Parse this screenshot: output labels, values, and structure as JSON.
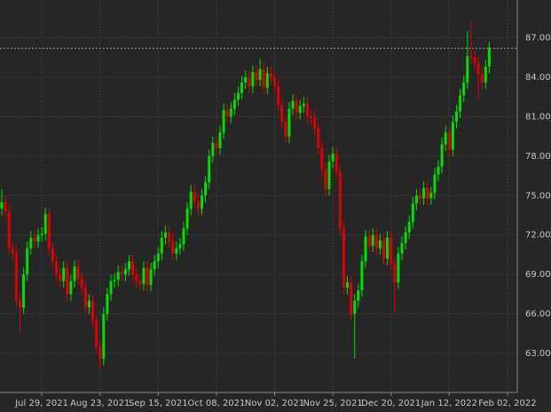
{
  "chart_data": {
    "type": "candlestick",
    "categories": [
      null,
      null,
      null,
      null,
      null,
      null,
      null,
      null,
      null,
      null,
      null,
      "Jul 29, 2021",
      null,
      null,
      null,
      null,
      null,
      null,
      null,
      null,
      null,
      null,
      null,
      null,
      null,
      null,
      null,
      "Aug 23, 2021",
      null,
      null,
      null,
      null,
      null,
      null,
      null,
      null,
      null,
      null,
      null,
      null,
      null,
      null,
      null,
      "Sep 15, 2021",
      null,
      null,
      null,
      null,
      null,
      null,
      null,
      null,
      null,
      null,
      null,
      null,
      null,
      null,
      null,
      "Oct 08, 2021",
      null,
      null,
      null,
      null,
      null,
      null,
      null,
      null,
      null,
      null,
      null,
      null,
      null,
      null,
      null,
      "Nov 02, 2021",
      null,
      null,
      null,
      null,
      null,
      null,
      null,
      null,
      null,
      null,
      null,
      null,
      null,
      null,
      null,
      "Nov 25, 2021",
      null,
      null,
      null,
      null,
      null,
      null,
      null,
      null,
      null,
      null,
      null,
      null,
      null,
      null,
      null,
      "Dec 20, 2021",
      null,
      null,
      null,
      null,
      null,
      null,
      null,
      null,
      null,
      null,
      null,
      null,
      null,
      null,
      null,
      "Jan 12, 2022",
      null,
      null,
      null,
      null,
      null,
      null,
      null,
      null,
      null,
      null,
      null,
      null,
      null,
      null,
      null,
      "Feb 02, 2022",
      null
    ],
    "open": [
      74.0,
      74.5,
      73.8,
      71.0,
      70.6,
      67.0,
      66.5,
      69.0,
      71.0,
      71.8,
      71.5,
      72.0,
      72.1,
      73.6,
      71.0,
      70.0,
      69.0,
      68.5,
      69.5,
      67.5,
      68.5,
      69.6,
      68.7,
      68.0,
      66.5,
      67.0,
      65.5,
      63.5,
      62.6,
      66.0,
      67.5,
      68.5,
      68.6,
      69.2,
      69.0,
      69.4,
      70.0,
      69.0,
      68.5,
      68.3,
      69.5,
      68.2,
      69.4,
      70.0,
      70.6,
      71.8,
      72.2,
      71.5,
      70.6,
      71.0,
      71.3,
      72.5,
      74.0,
      75.3,
      74.6,
      74.0,
      75.0,
      76.0,
      78.0,
      79.0,
      78.6,
      79.8,
      81.5,
      81.0,
      81.6,
      82.3,
      82.8,
      83.6,
      84.0,
      83.3,
      84.4,
      83.8,
      84.6,
      83.2,
      84.3,
      84.0,
      83.3,
      81.9,
      80.6,
      79.5,
      81.6,
      82.2,
      81.3,
      81.8,
      82.0,
      81.0,
      80.9,
      80.1,
      78.6,
      77.0,
      75.5,
      77.6,
      78.2,
      76.8,
      72.5,
      68.0,
      68.4,
      66.0,
      67.0,
      67.8,
      70.0,
      71.9,
      71.2,
      72.0,
      71.0,
      71.6,
      70.2,
      71.8,
      69.8,
      68.4,
      70.6,
      71.4,
      72.2,
      73.0,
      74.4,
      75.0,
      74.8,
      75.6,
      74.8,
      75.2,
      76.6,
      77.2,
      78.9,
      79.8,
      78.5,
      80.6,
      81.4,
      82.6,
      83.6,
      85.6,
      85.5,
      85.1,
      84.2,
      83.6,
      84.8,
      null,
      null,
      null,
      null,
      null,
      null
    ],
    "high": [
      75.5,
      75.0,
      74.3,
      71.5,
      71.1,
      67.5,
      69.5,
      71.5,
      72.3,
      72.3,
      72.5,
      72.6,
      74.1,
      74.1,
      71.5,
      70.5,
      69.5,
      70.0,
      70.0,
      69.0,
      70.1,
      70.1,
      69.2,
      68.5,
      67.5,
      67.5,
      66.0,
      64.0,
      66.5,
      68.0,
      69.0,
      69.1,
      69.7,
      69.7,
      69.9,
      70.5,
      70.5,
      69.5,
      69.0,
      70.0,
      70.0,
      69.9,
      70.5,
      71.1,
      72.3,
      72.7,
      72.7,
      72.0,
      71.5,
      71.8,
      73.0,
      74.5,
      75.8,
      75.8,
      75.1,
      75.5,
      76.5,
      78.5,
      79.5,
      79.5,
      80.3,
      82.0,
      82.0,
      82.1,
      82.8,
      83.3,
      84.1,
      84.5,
      84.5,
      84.9,
      84.9,
      85.4,
      85.1,
      84.8,
      84.8,
      84.5,
      83.8,
      82.4,
      81.1,
      82.1,
      82.7,
      82.7,
      82.3,
      82.5,
      82.5,
      81.5,
      81.4,
      80.6,
      79.1,
      77.5,
      78.1,
      78.7,
      78.7,
      77.3,
      73.0,
      68.9,
      68.9,
      67.5,
      68.3,
      70.5,
      72.4,
      72.4,
      72.5,
      72.5,
      72.1,
      72.1,
      72.3,
      72.3,
      70.3,
      71.1,
      71.9,
      72.7,
      73.5,
      74.9,
      75.5,
      75.5,
      76.1,
      76.1,
      75.7,
      77.1,
      77.7,
      79.4,
      80.3,
      80.3,
      81.1,
      81.9,
      83.1,
      84.1,
      87.5,
      88.2,
      86.0,
      85.6,
      84.7,
      85.3,
      86.7,
      null,
      null,
      null,
      null,
      null,
      null
    ],
    "low": [
      73.5,
      73.3,
      70.5,
      70.1,
      66.5,
      64.5,
      66.0,
      68.5,
      70.5,
      71.0,
      71.0,
      71.5,
      71.6,
      70.5,
      69.5,
      68.5,
      68.0,
      68.0,
      67.0,
      67.0,
      68.0,
      68.2,
      67.5,
      66.0,
      66.0,
      65.0,
      63.0,
      61.8,
      62.1,
      65.5,
      67.0,
      68.0,
      68.1,
      68.5,
      68.5,
      68.9,
      68.5,
      68.0,
      67.8,
      67.8,
      67.7,
      67.7,
      68.9,
      69.5,
      70.1,
      71.3,
      71.0,
      70.1,
      70.1,
      70.5,
      70.8,
      72.0,
      73.5,
      74.1,
      73.5,
      73.5,
      74.5,
      75.5,
      77.5,
      78.1,
      78.1,
      79.3,
      80.5,
      80.5,
      81.1,
      81.8,
      82.3,
      83.1,
      82.8,
      82.8,
      83.3,
      83.3,
      82.7,
      82.7,
      83.5,
      82.8,
      81.4,
      80.1,
      79.0,
      79.0,
      81.1,
      80.8,
      80.8,
      81.3,
      80.5,
      80.4,
      79.6,
      78.1,
      76.5,
      75.0,
      75.0,
      77.1,
      76.3,
      72.0,
      67.5,
      67.5,
      65.5,
      62.6,
      66.5,
      67.3,
      69.5,
      70.7,
      70.7,
      70.5,
      70.5,
      69.7,
      69.7,
      69.3,
      66.0,
      67.9,
      70.1,
      70.9,
      71.7,
      72.5,
      73.9,
      74.3,
      74.3,
      74.3,
      74.3,
      74.7,
      76.1,
      76.7,
      78.4,
      78.0,
      78.0,
      80.1,
      80.9,
      82.1,
      83.1,
      85.0,
      84.6,
      82.3,
      83.1,
      83.1,
      84.3,
      null,
      null,
      null,
      null,
      null,
      null
    ],
    "close": [
      74.5,
      73.8,
      71.0,
      70.6,
      67.0,
      66.5,
      69.0,
      71.0,
      71.8,
      71.5,
      72.0,
      72.1,
      73.6,
      71.0,
      70.0,
      69.0,
      68.5,
      69.5,
      67.5,
      68.5,
      69.6,
      68.7,
      68.0,
      66.5,
      67.0,
      65.5,
      63.5,
      62.6,
      66.0,
      67.5,
      68.5,
      68.6,
      69.2,
      69.0,
      69.4,
      70.0,
      69.0,
      68.5,
      68.3,
      69.5,
      68.2,
      69.4,
      70.0,
      70.6,
      71.8,
      72.2,
      71.5,
      70.6,
      71.0,
      71.3,
      72.5,
      74.0,
      75.3,
      74.6,
      74.0,
      75.0,
      76.0,
      78.0,
      79.0,
      78.6,
      79.8,
      81.5,
      81.0,
      81.6,
      82.3,
      82.8,
      83.6,
      84.0,
      83.3,
      84.4,
      83.8,
      84.6,
      83.2,
      84.3,
      84.0,
      83.3,
      81.9,
      80.6,
      79.5,
      81.6,
      82.2,
      81.3,
      81.8,
      82.0,
      81.0,
      80.9,
      80.1,
      78.6,
      77.0,
      75.5,
      77.6,
      78.2,
      76.8,
      72.5,
      68.0,
      68.4,
      66.0,
      67.0,
      67.8,
      70.0,
      71.9,
      71.2,
      72.0,
      71.0,
      71.6,
      70.2,
      71.8,
      69.8,
      68.4,
      70.6,
      71.4,
      72.2,
      73.0,
      74.4,
      75.0,
      74.8,
      75.6,
      74.8,
      75.2,
      76.6,
      77.2,
      78.9,
      79.8,
      78.5,
      80.6,
      81.4,
      82.6,
      83.6,
      85.6,
      85.5,
      85.1,
      84.2,
      83.6,
      84.8,
      86.2,
      null,
      null,
      null,
      null,
      null,
      null
    ],
    "up_color": "#00e000",
    "down_color": "#e00000",
    "ylim": [
      60.17,
      89.87
    ],
    "yticks": [
      {
        "value": 63,
        "label": "63.00"
      },
      {
        "value": 66,
        "label": "66.00"
      },
      {
        "value": 69,
        "label": "69.00"
      },
      {
        "value": 72,
        "label": "72.00"
      },
      {
        "value": 75,
        "label": "75.00"
      },
      {
        "value": 78,
        "label": "78.00"
      },
      {
        "value": 81,
        "label": "81.00"
      },
      {
        "value": 84,
        "label": "84.00"
      },
      {
        "value": 87,
        "label": "87.00"
      }
    ],
    "grid": true
  }
}
